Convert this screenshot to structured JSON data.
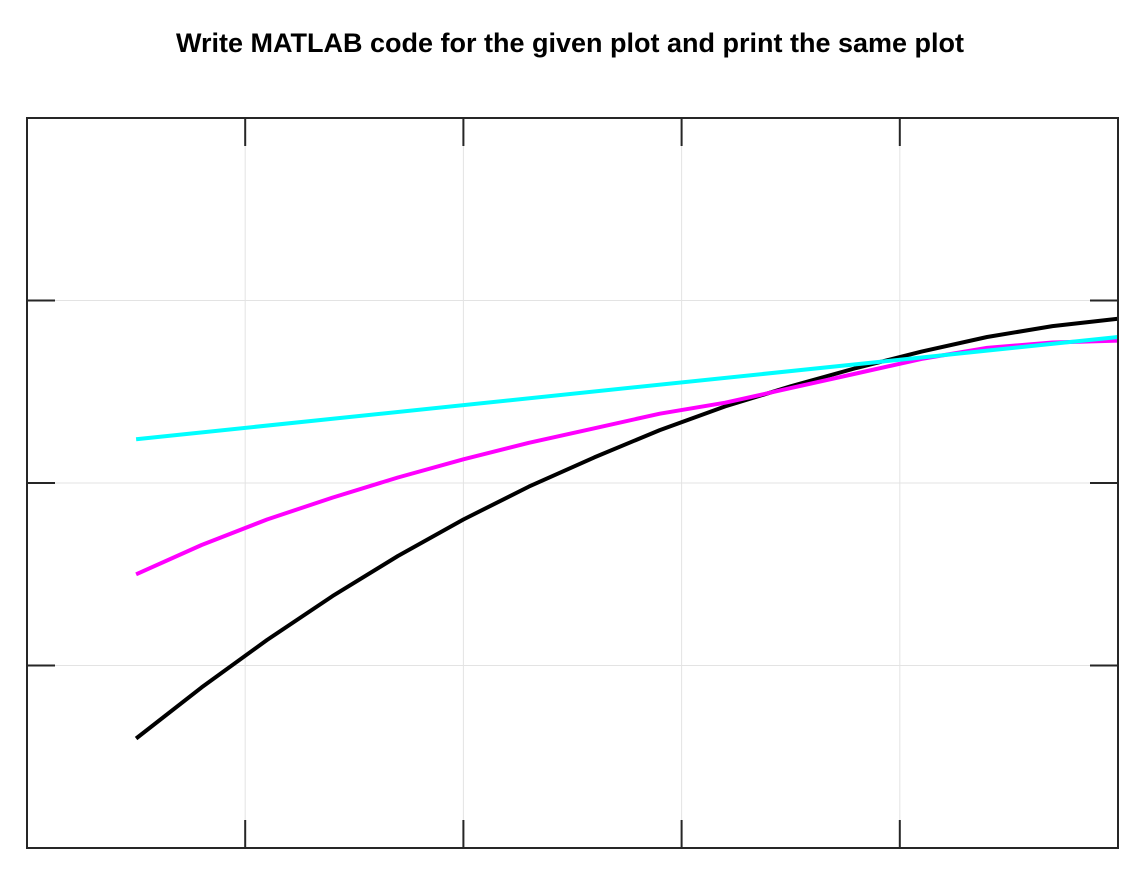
{
  "heading": "Write MATLAB code for the given plot and print the same plot",
  "chart_data": {
    "type": "line",
    "title": "",
    "xlabel": "",
    "ylabel": "",
    "grid": true,
    "box": true,
    "tick_labels_visible": false,
    "xlim": [
      0,
      5
    ],
    "ylim": [
      -1,
      1
    ],
    "xticks": [
      0,
      1,
      2,
      3,
      4,
      5
    ],
    "yticks": [
      -0.5,
      0,
      0.5
    ],
    "series": [
      {
        "color": "#000000",
        "x": [
          0.5,
          0.8,
          1.1,
          1.4,
          1.7,
          2.0,
          2.3,
          2.6,
          2.9,
          3.2,
          3.5,
          3.8,
          4.1,
          4.4,
          4.7,
          5.0
        ],
        "y": [
          -0.7,
          -0.56,
          -0.43,
          -0.31,
          -0.2,
          -0.1,
          -0.01,
          0.07,
          0.145,
          0.21,
          0.265,
          0.315,
          0.36,
          0.4,
          0.43,
          0.45
        ]
      },
      {
        "color": "#ff00ff",
        "x": [
          0.5,
          0.8,
          1.1,
          1.4,
          1.7,
          2.0,
          2.3,
          2.6,
          2.9,
          3.2,
          3.5,
          3.8,
          4.1,
          4.4,
          4.7,
          5.0
        ],
        "y": [
          -0.25,
          -0.17,
          -0.1,
          -0.04,
          0.015,
          0.065,
          0.11,
          0.15,
          0.19,
          0.22,
          0.26,
          0.3,
          0.34,
          0.37,
          0.385,
          0.39
        ]
      },
      {
        "color": "#00ffff",
        "x": [
          0.5,
          5.0
        ],
        "y": [
          0.12,
          0.4
        ]
      }
    ]
  }
}
